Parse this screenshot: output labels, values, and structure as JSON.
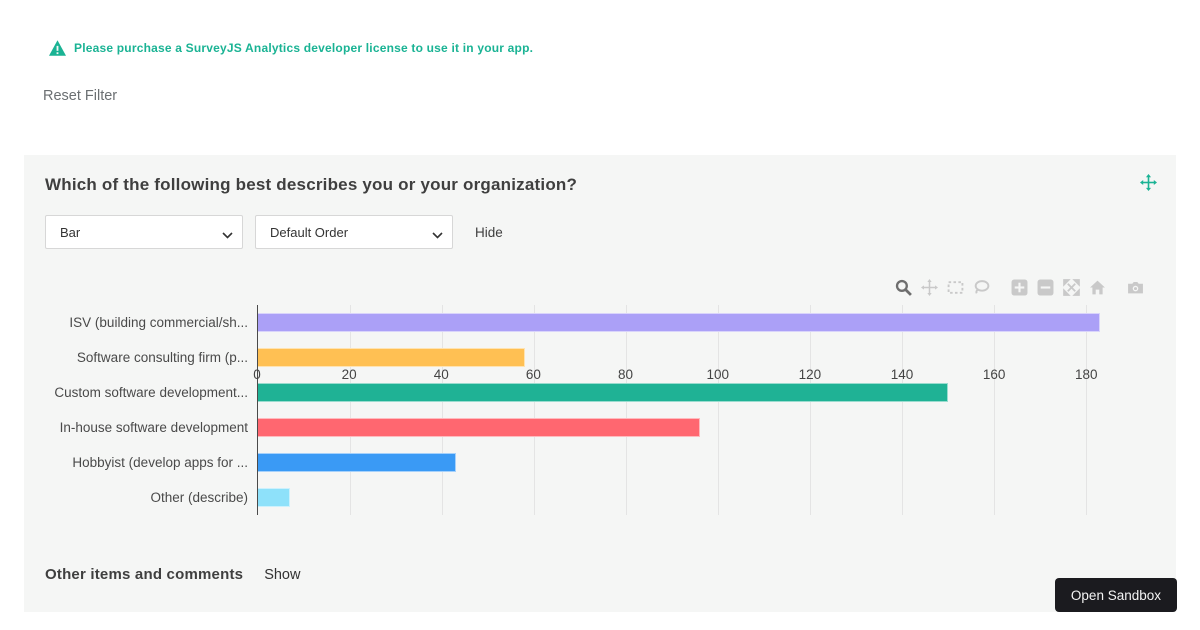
{
  "theme": {
    "accent": "#1ab394"
  },
  "license_banner": {
    "icon": "warning-triangle-icon",
    "text": "Please purchase a SurveyJS Analytics developer license to use it in your app."
  },
  "toolbar": {
    "reset_filter_label": "Reset Filter"
  },
  "panel": {
    "title": "Which of the following best describes you or your organization?",
    "chart_type_select": {
      "value": "Bar"
    },
    "order_select": {
      "value": "Default Order"
    },
    "hide_label": "Hide",
    "footer": {
      "label": "Other items and comments",
      "show_label": "Show"
    }
  },
  "modebar": {
    "icons": [
      "zoom",
      "pan",
      "box-select",
      "lasso-select",
      "zoom-in",
      "zoom-out",
      "autoscale",
      "reset-axes",
      "download-plot"
    ]
  },
  "chart_data": {
    "type": "bar",
    "orientation": "horizontal",
    "title": "Which of the following best describes you or your organization?",
    "categories": [
      "ISV (building commercial/sh...",
      "Software consulting firm (p...",
      "Custom software development...",
      "In-house software development",
      "Hobbyist (develop apps for ...",
      "Other (describe)"
    ],
    "values": [
      183,
      58,
      150,
      96,
      43,
      7
    ],
    "colors": [
      "#aba0f7",
      "#ffc053",
      "#1fb295",
      "#ff6770",
      "#3a9af5",
      "#8ee1fa"
    ],
    "xticks": [
      0,
      20,
      40,
      60,
      80,
      100,
      120,
      140,
      160,
      180
    ],
    "xlim": [
      0,
      196
    ],
    "grid": true,
    "legend": "none",
    "plot_background": "#f5f6f5"
  },
  "sandbox_button": {
    "label": "Open Sandbox"
  }
}
